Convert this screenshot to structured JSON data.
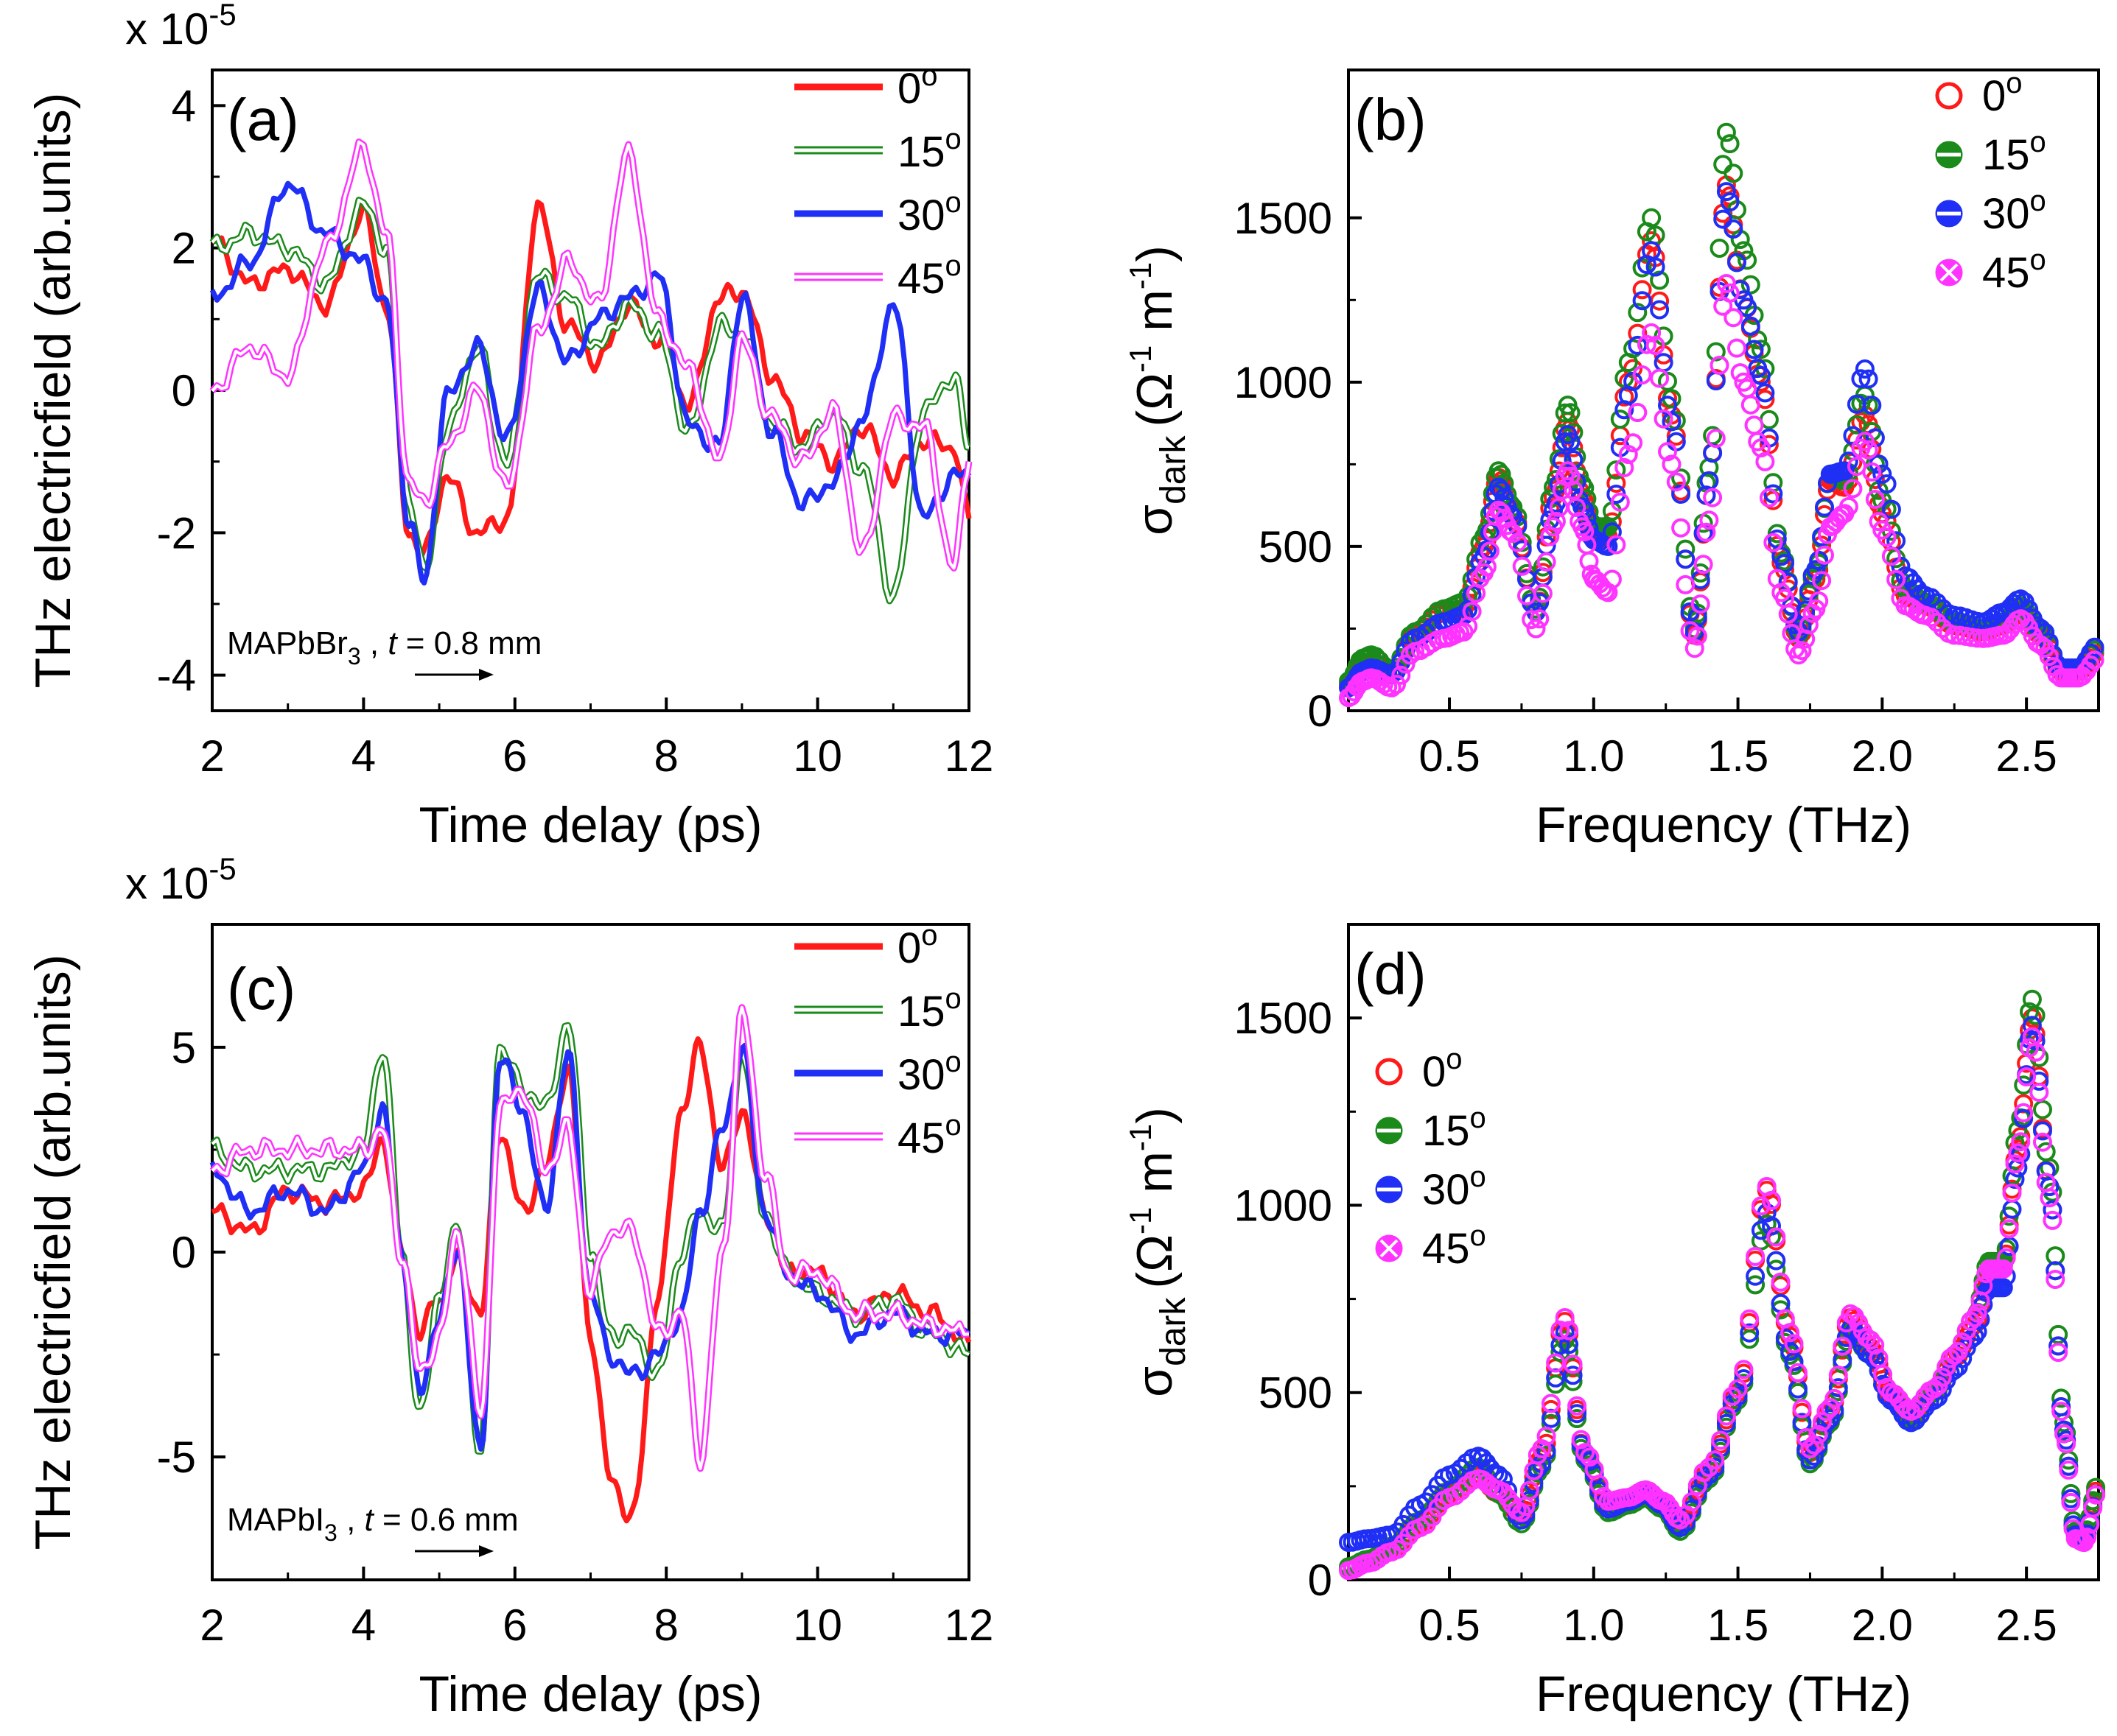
{
  "figure": {
    "series_colors": [
      "#ff1a1a",
      "#1a8a1a",
      "#1f2ff5",
      "#ff33ff"
    ],
    "series_names": [
      "0o",
      "15o",
      "30o",
      "45o"
    ]
  },
  "chart_data": [
    {
      "panel": "(a)",
      "type": "line",
      "title": "",
      "xlabel": "Time delay (ps)",
      "ylabel": "THz electricfield (arb.units)",
      "multiplier": "x 10",
      "multiplier_exp": "-5",
      "xlim": [
        2,
        12
      ],
      "ylim": [
        -4.5,
        4.5
      ],
      "xticks": [
        2,
        4,
        6,
        8,
        10,
        12
      ],
      "yticks": [
        -4,
        -2,
        0,
        2,
        4
      ],
      "sample": "MAPbBr",
      "sample_sub": "3",
      "thickness_var": "t",
      "thickness": " = 0.8 mm",
      "x": [
        2.0,
        2.5,
        3.0,
        3.5,
        4.0,
        4.3,
        4.6,
        4.8,
        5.1,
        5.5,
        5.9,
        6.3,
        6.7,
        7.1,
        7.5,
        7.9,
        8.3,
        8.7,
        9.0,
        9.4,
        9.8,
        10.2,
        10.6,
        11.0,
        11.4,
        11.8,
        12.0
      ],
      "series": [
        {
          "name": "0o",
          "values": [
            2.1,
            1.5,
            1.7,
            1.2,
            2.5,
            1.2,
            -2.0,
            -2.3,
            -1.2,
            -2.0,
            -1.8,
            2.6,
            0.9,
            0.4,
            1.2,
            0.7,
            -0.2,
            1.3,
            1.4,
            0.2,
            -0.6,
            -1.0,
            -0.5,
            -1.2,
            -0.7,
            -0.8,
            -1.8
          ]
        },
        {
          "name": "15o",
          "values": [
            2.0,
            2.2,
            2.0,
            1.5,
            2.6,
            2.0,
            -1.5,
            -2.6,
            -0.6,
            0.6,
            -1.0,
            1.6,
            1.3,
            0.6,
            1.2,
            0.8,
            -0.6,
            0.9,
            0.8,
            -0.5,
            -0.8,
            -0.3,
            -1.1,
            -2.9,
            -0.3,
            0.2,
            -0.8
          ]
        },
        {
          "name": "30o",
          "values": [
            1.3,
            1.8,
            2.9,
            2.2,
            1.8,
            1.2,
            -1.8,
            -2.7,
            -0.1,
            0.6,
            -0.7,
            1.4,
            0.4,
            1.0,
            1.3,
            1.6,
            -0.5,
            -0.8,
            1.3,
            -0.6,
            -1.6,
            -1.3,
            -0.4,
            1.2,
            -1.8,
            -1.2,
            -1.2
          ]
        },
        {
          "name": "45o",
          "values": [
            0.0,
            0.6,
            0.2,
            2.0,
            3.4,
            2.2,
            -1.3,
            -1.6,
            -0.8,
            0.0,
            -1.4,
            0.8,
            1.8,
            1.2,
            3.3,
            1.0,
            0.3,
            -1.0,
            0.7,
            -0.4,
            -1.0,
            -0.3,
            -2.3,
            -0.4,
            -0.5,
            -2.5,
            -1.0
          ]
        }
      ]
    },
    {
      "panel": "(b)",
      "type": "scatter",
      "title": "",
      "xlabel": "Frequency (THz)",
      "ylabel": "σ",
      "ylabel_sub": "dark",
      "ylabel_units": "(Ω",
      "ylabel_exp1": "-1",
      "ylabel_m": " m",
      "ylabel_exp2": "-1",
      "ylabel_close": ")",
      "xlim": [
        0.15,
        2.75
      ],
      "ylim": [
        0,
        1950
      ],
      "xticks": [
        0.5,
        1.0,
        1.5,
        2.0,
        2.5
      ],
      "yticks": [
        0,
        500,
        1000,
        1500
      ],
      "x": [
        0.15,
        0.2,
        0.23,
        0.3,
        0.38,
        0.48,
        0.55,
        0.62,
        0.67,
        0.72,
        0.8,
        0.86,
        0.91,
        0.96,
        1.0,
        1.05,
        1.12,
        1.2,
        1.27,
        1.35,
        1.4,
        1.46,
        1.52,
        1.58,
        1.65,
        1.71,
        1.77,
        1.82,
        1.87,
        1.94,
        2.0,
        2.08,
        2.15,
        2.25,
        2.35,
        2.42,
        2.48,
        2.55,
        2.62,
        2.68,
        2.75
      ],
      "series": [
        {
          "name": "0o",
          "values": [
            80,
            140,
            150,
            110,
            230,
            300,
            310,
            500,
            710,
            600,
            300,
            650,
            880,
            650,
            520,
            530,
            1000,
            1430,
            900,
            230,
            700,
            1600,
            1250,
            1000,
            450,
            220,
            400,
            700,
            680,
            900,
            600,
            350,
            320,
            260,
            240,
            260,
            300,
            230,
            120,
            120,
            180
          ]
        },
        {
          "name": "15o",
          "values": [
            90,
            160,
            170,
            120,
            240,
            310,
            330,
            530,
            730,
            620,
            310,
            680,
            930,
            690,
            560,
            560,
            1060,
            1500,
            950,
            250,
            740,
            1760,
            1400,
            1100,
            480,
            230,
            420,
            720,
            700,
            960,
            640,
            370,
            330,
            270,
            250,
            270,
            320,
            240,
            130,
            130,
            190
          ]
        },
        {
          "name": "30o",
          "values": [
            70,
            120,
            130,
            110,
            220,
            270,
            290,
            470,
            680,
            590,
            300,
            610,
            840,
            620,
            520,
            500,
            960,
            1400,
            880,
            240,
            700,
            1580,
            1250,
            1020,
            470,
            240,
            430,
            720,
            730,
            1040,
            720,
            410,
            350,
            290,
            270,
            300,
            340,
            250,
            130,
            130,
            200
          ]
        },
        {
          "name": "45o",
          "values": [
            40,
            90,
            100,
            70,
            180,
            220,
            240,
            420,
            610,
            540,
            250,
            560,
            730,
            560,
            400,
            360,
            780,
            1150,
            750,
            190,
            580,
            1300,
            1000,
            800,
            360,
            170,
            310,
            560,
            600,
            820,
            550,
            320,
            290,
            230,
            220,
            230,
            280,
            200,
            100,
            100,
            160
          ]
        }
      ]
    },
    {
      "panel": "(c)",
      "type": "line",
      "title": "",
      "xlabel": "Time delay (ps)",
      "ylabel": "THz electricfield (arb.units)",
      "multiplier": "x 10",
      "multiplier_exp": "-5",
      "xlim": [
        2,
        12
      ],
      "ylim": [
        -8,
        8
      ],
      "xticks": [
        2,
        4,
        6,
        8,
        10,
        12
      ],
      "yticks": [
        -5,
        0,
        5
      ],
      "sample": "MAPbI",
      "sample_sub": "3",
      "thickness_var": "t",
      "thickness": " = 0.6 mm",
      "x": [
        2.0,
        2.5,
        3.0,
        3.5,
        4.0,
        4.25,
        4.5,
        4.75,
        5.0,
        5.25,
        5.55,
        5.8,
        6.1,
        6.4,
        6.7,
        7.0,
        7.25,
        7.55,
        7.9,
        8.2,
        8.45,
        8.75,
        9.0,
        9.3,
        9.6,
        10.0,
        10.5,
        11.0,
        11.5,
        12.0
      ],
      "series": [
        {
          "name": "0o",
          "values": [
            1.0,
            0.5,
            1.5,
            1.2,
            1.5,
            2.8,
            0.0,
            -2.0,
            -1.0,
            -0.2,
            -1.5,
            3.0,
            1.0,
            2.0,
            4.5,
            -2.0,
            -5.5,
            -6.5,
            -1.0,
            3.5,
            5.0,
            2.0,
            3.5,
            1.0,
            -0.5,
            -0.5,
            -1.5,
            -1.0,
            -1.5,
            -2.2
          ]
        },
        {
          "name": "15o",
          "values": [
            2.5,
            2.0,
            2.0,
            2.0,
            2.5,
            5.0,
            0.0,
            -4.0,
            -1.0,
            0.5,
            -5.0,
            5.0,
            4.0,
            3.5,
            5.5,
            0.0,
            -2.0,
            -2.0,
            -3.0,
            0.0,
            1.0,
            0.5,
            5.0,
            1.0,
            -0.5,
            -1.0,
            -1.5,
            -1.2,
            -2.0,
            -2.5
          ]
        },
        {
          "name": "30o",
          "values": [
            2.0,
            1.0,
            1.5,
            1.0,
            2.0,
            3.5,
            0.0,
            -3.5,
            -1.5,
            0.0,
            -5.0,
            4.8,
            3.5,
            1.0,
            4.8,
            -1.0,
            -2.5,
            -3.0,
            -2.5,
            -1.5,
            1.0,
            3.0,
            5.0,
            1.0,
            -0.5,
            -1.0,
            -2.0,
            -1.5,
            -2.0,
            -2.0
          ]
        },
        {
          "name": "45o",
          "values": [
            2.0,
            2.5,
            2.5,
            2.5,
            2.5,
            3.0,
            0.0,
            -3.0,
            -2.0,
            0.5,
            -4.0,
            3.5,
            4.0,
            2.0,
            3.0,
            -1.0,
            0.5,
            0.5,
            -2.0,
            -1.5,
            -5.0,
            0.0,
            5.8,
            2.0,
            -0.5,
            -0.5,
            -1.5,
            -1.5,
            -1.8,
            -2.0
          ]
        }
      ]
    },
    {
      "panel": "(d)",
      "type": "scatter",
      "title": "",
      "xlabel": "Frequency (THz)",
      "ylabel": "σ",
      "ylabel_sub": "dark",
      "ylabel_units": "(Ω",
      "ylabel_exp1": "-1",
      "ylabel_m": " m",
      "ylabel_exp2": "-1",
      "ylabel_close": ")",
      "xlim": [
        0.15,
        2.75
      ],
      "ylim": [
        0,
        1750
      ],
      "xticks": [
        0.5,
        1.0,
        1.5,
        2.0,
        2.5
      ],
      "yticks": [
        0,
        500,
        1000,
        1500
      ],
      "x": [
        0.15,
        0.22,
        0.3,
        0.4,
        0.5,
        0.6,
        0.67,
        0.75,
        0.82,
        0.9,
        0.97,
        1.05,
        1.12,
        1.18,
        1.24,
        1.3,
        1.4,
        1.5,
        1.6,
        1.68,
        1.75,
        1.82,
        1.89,
        1.96,
        2.03,
        2.1,
        2.18,
        2.25,
        2.32,
        2.37,
        2.42,
        2.47,
        2.52,
        2.58,
        2.63,
        2.67,
        2.7,
        2.75
      ],
      "series": [
        {
          "name": "0o",
          "values": [
            30,
            50,
            80,
            150,
            230,
            280,
            230,
            170,
            330,
            690,
            330,
            200,
            210,
            230,
            200,
            150,
            290,
            500,
            1040,
            650,
            340,
            450,
            700,
            620,
            490,
            440,
            500,
            590,
            680,
            820,
            840,
            1150,
            1500,
            1050,
            400,
            120,
            110,
            250
          ]
        },
        {
          "name": "15o",
          "values": [
            35,
            55,
            90,
            160,
            240,
            300,
            230,
            150,
            300,
            640,
            320,
            180,
            200,
            220,
            190,
            130,
            270,
            480,
            950,
            600,
            310,
            420,
            660,
            600,
            480,
            430,
            500,
            600,
            700,
            850,
            850,
            1200,
            1550,
            1100,
            420,
            130,
            120,
            260
          ]
        },
        {
          "name": "30o",
          "values": [
            100,
            110,
            120,
            200,
            280,
            330,
            280,
            160,
            310,
            660,
            330,
            190,
            210,
            230,
            200,
            140,
            280,
            490,
            980,
            610,
            320,
            430,
            670,
            600,
            480,
            420,
            480,
            560,
            650,
            780,
            780,
            1100,
            1480,
            1050,
            400,
            120,
            110,
            240
          ]
        },
        {
          "name": "45o",
          "values": [
            25,
            45,
            75,
            140,
            220,
            270,
            240,
            180,
            350,
            700,
            340,
            210,
            220,
            240,
            210,
            160,
            300,
            510,
            1050,
            660,
            350,
            460,
            710,
            640,
            500,
            450,
            510,
            600,
            700,
            830,
            830,
            1140,
            1450,
            1020,
            390,
            110,
            100,
            240
          ]
        }
      ]
    }
  ]
}
